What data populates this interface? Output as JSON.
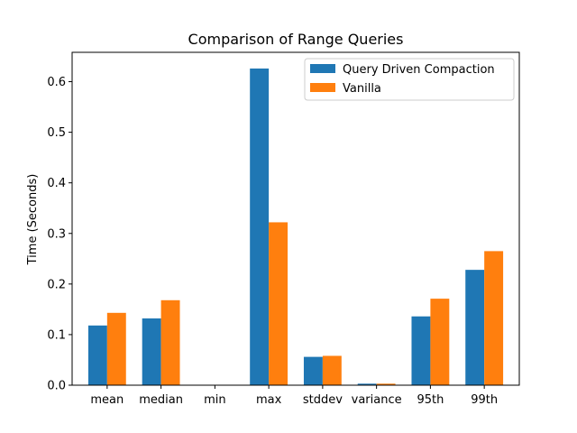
{
  "chart_data": {
    "type": "bar",
    "title": "Comparison of Range Queries",
    "xlabel": "",
    "ylabel": "Time (Seconds)",
    "categories": [
      "mean",
      "median",
      "min",
      "max",
      "stddev",
      "variance",
      "95th",
      "99th"
    ],
    "series": [
      {
        "name": "Query Driven Compaction",
        "color": "#1f77b4",
        "values": [
          0.118,
          0.132,
          0.0,
          0.626,
          0.056,
          0.003,
          0.136,
          0.228
        ]
      },
      {
        "name": "Vanilla",
        "color": "#ff7f0e",
        "values": [
          0.143,
          0.168,
          0.0,
          0.322,
          0.058,
          0.003,
          0.171,
          0.265
        ]
      }
    ],
    "ylim": [
      0,
      0.658
    ],
    "yticks": [
      0.0,
      0.1,
      0.2,
      0.3,
      0.4,
      0.5,
      0.6
    ],
    "ytick_labels": [
      "0.0",
      "0.1",
      "0.2",
      "0.3",
      "0.4",
      "0.5",
      "0.6"
    ],
    "grid": false,
    "legend_position": "top-right"
  }
}
